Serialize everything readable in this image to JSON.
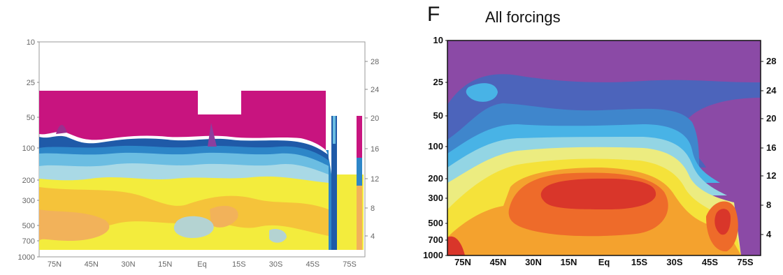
{
  "chart_data": [
    {
      "type": "heatmap",
      "title": "",
      "xlabel": "",
      "ylabel": "",
      "x_ticks": [
        "75N",
        "45N",
        "30N",
        "15N",
        "Eq",
        "15S",
        "30S",
        "45S",
        "75S"
      ],
      "y_ticks_left": [
        "10",
        "25",
        "50",
        "100",
        "200",
        "300",
        "500",
        "700",
        "1000"
      ],
      "y_ticks_right": [
        "28",
        "24",
        "20",
        "16",
        "12",
        "8",
        "4"
      ],
      "y_scale": "log",
      "ylim": [
        1000,
        10
      ],
      "colors": {
        "magenta": "#c8147f",
        "blue_dark": "#1f5aa8",
        "blue_mid": "#2d86c8",
        "blue_light": "#6bbde2",
        "cyan_pale": "#a9d9e6",
        "yellow": "#f3ec3d",
        "yellow_orange": "#f5c33a",
        "orange_light": "#f2b25a",
        "pale_blue_grey": "#b4d3d2"
      }
    },
    {
      "type": "heatmap",
      "panel_letter": "F",
      "title": "All forcings",
      "xlabel": "",
      "ylabel": "",
      "x_ticks": [
        "75N",
        "45N",
        "30N",
        "15N",
        "Eq",
        "15S",
        "30S",
        "45S",
        "75S"
      ],
      "y_ticks_left": [
        "10",
        "25",
        "50",
        "100",
        "200",
        "300",
        "500",
        "700",
        "1000"
      ],
      "y_ticks_right": [
        "28",
        "24",
        "20",
        "16",
        "12",
        "8",
        "4"
      ],
      "y_scale": "log",
      "ylim": [
        1000,
        10
      ],
      "colors": {
        "purple": "#8b4aa6",
        "blue_violet": "#4c64bb",
        "blue": "#3f86cc",
        "sky": "#48b3e6",
        "cyan_light": "#93d5e4",
        "pale_yellow": "#ecec80",
        "yellow": "#f5e23a",
        "orange": "#f4a22e",
        "orange_red": "#ee6b2a",
        "red": "#d9362a"
      }
    }
  ]
}
